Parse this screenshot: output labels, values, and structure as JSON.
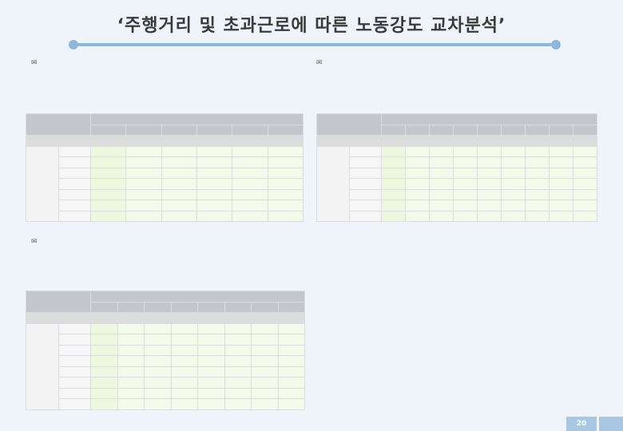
{
  "title": "‘주행거리 및 초과근로에 따른 노동강도 교차분석’",
  "page_number": "20",
  "colors": {
    "accent": "#8fb8dc",
    "header": "#c3c6ca",
    "cell": "#eef8df"
  },
  "blocks": [
    {
      "para": [
        "",
        ""
      ],
      "caption": "",
      "header_top": "",
      "columns": [
        "",
        "",
        "",
        "",
        "",
        ""
      ],
      "total": [
        "",
        "",
        "",
        "",
        "",
        "",
        ""
      ],
      "group": "",
      "rows": []
    },
    {
      "para": [
        "",
        ""
      ],
      "caption": "",
      "header_top": "",
      "columns": [
        "",
        "",
        "",
        "",
        "",
        "",
        "",
        "",
        ""
      ],
      "total": [
        "",
        "",
        "",
        "",
        "",
        "",
        "",
        "",
        "",
        ""
      ],
      "group": "",
      "rows": []
    },
    {
      "para": [
        "",
        "",
        ""
      ],
      "caption": "",
      "header_top": "",
      "columns": [
        "",
        "",
        "",
        "",
        "",
        "",
        "",
        ""
      ],
      "total": [
        "",
        "",
        "",
        "",
        "",
        "",
        "",
        "",
        ""
      ],
      "group": "",
      "rows": []
    }
  ]
}
